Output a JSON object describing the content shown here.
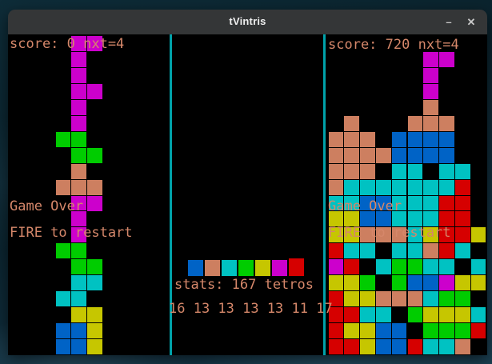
{
  "window": {
    "title": "tVintris",
    "minimize_icon": "–",
    "close_icon": "✕"
  },
  "left_board": {
    "score_text": "score: 0 nxt=4",
    "game_over_text": "Game Over",
    "restart_text": "FIRE to restart",
    "rows": [
      "....MM....",
      "....M.....",
      "....M.....",
      "....MM....",
      "....M.....",
      "....M.....",
      "...GG.....",
      "....GG....",
      "....S.....",
      "...SSS....",
      "....MM....",
      "....M.....",
      "....M.....",
      "...GG.....",
      "....GG....",
      "....CC....",
      "...CC.....",
      "....YY....",
      "...BBY....",
      "...BBY...."
    ]
  },
  "right_board": {
    "score_text": "score: 720 nxt=4",
    "game_over_text": "Game Over",
    "restart_text": "FIRE to restart",
    "rows": [
      "..........",
      "......MM..",
      "......M...",
      "......M...",
      "......S...",
      ".S...SSS..",
      "SSS.BBBB..",
      "SSSSBBBB..",
      "SSS.CC.CC.",
      "SCCCCCCCR.",
      "CCBBCCCRR.",
      "YYBBCCCRR.",
      "YYSSSCYRRY",
      "RCC.CCSRC.",
      "MR.CGGCC.C",
      "YYG.GBBMYY",
      "RYYSSSCGG.",
      "RRCC.GYYYC",
      "RYYBB.GGGR",
      "RRYBBRCCS."
    ]
  },
  "middle": {
    "stats_text": "stats: 167 tetros",
    "counts_text": "16 13 13 13 13 11 17",
    "legend": [
      "B",
      "S",
      "C",
      "G",
      "Y",
      "M",
      "R"
    ]
  },
  "colors": {
    "B": "#0063c6",
    "S": "#cd7f60",
    "C": "#00c2c2",
    "G": "#00cc00",
    "Y": "#c6c600",
    "M": "#cc00cc",
    "R": "#d60000",
    "text": "#d5876a",
    "separator": "#00a2aa",
    "titlebar": "#343637",
    "board_bg": "#000000"
  }
}
